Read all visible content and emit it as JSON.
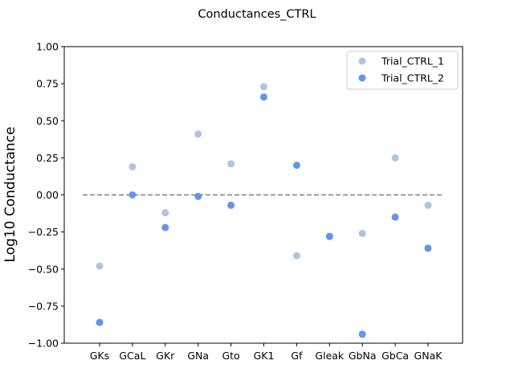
{
  "chart_data": {
    "type": "scatter",
    "title": "Conductances_CTRL",
    "xlabel": "",
    "ylabel": "Log10 Conductance",
    "categories": [
      "GKs",
      "GCaL",
      "GKr",
      "GNa",
      "Gto",
      "GK1",
      "Gf",
      "Gleak",
      "GbNa",
      "GbCa",
      "GNaK"
    ],
    "ylim": [
      -1.0,
      1.0
    ],
    "yticks": [
      "1.00",
      "0.75",
      "0.50",
      "0.25",
      "0.00",
      "−0.25",
      "−0.50",
      "−0.75",
      "−1.00"
    ],
    "reference_line": {
      "y": 0.0,
      "style": "dashed",
      "color": "#808080"
    },
    "legend": {
      "placement": "top-right"
    },
    "series": [
      {
        "name": "Trial_CTRL_1",
        "color": "#b0c4de",
        "values": [
          -0.48,
          0.19,
          -0.12,
          0.41,
          0.21,
          0.73,
          -0.41,
          -0.28,
          -0.26,
          0.25,
          -0.07
        ]
      },
      {
        "name": "Trial_CTRL_2",
        "color": "#6495ed",
        "values": [
          -0.86,
          0.0,
          -0.22,
          -0.01,
          -0.07,
          0.66,
          0.2,
          -0.28,
          -0.94,
          -0.15,
          -0.36
        ]
      }
    ]
  }
}
